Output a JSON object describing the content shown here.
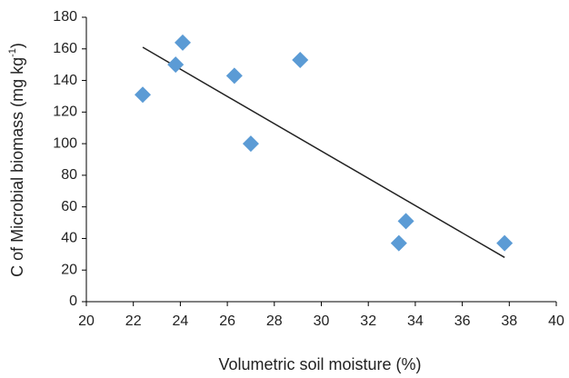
{
  "chart_data": {
    "type": "scatter",
    "x_label": "Volumetric soil moisture (%)",
    "y_label": [
      "C of Microbial biomass (mg kg",
      "-1",
      ")"
    ],
    "x": [
      22.4,
      23.8,
      24.1,
      26.3,
      27.0,
      29.1,
      33.3,
      33.6,
      37.8
    ],
    "values": [
      131,
      150,
      164,
      143,
      100,
      153,
      37,
      51,
      37
    ],
    "color": "#5b9bd5",
    "trendline": {
      "x": [
        22.4,
        37.8
      ],
      "values": [
        161,
        28
      ],
      "color": "#222222"
    },
    "xlim": [
      20,
      40
    ],
    "xticks": [
      20,
      22,
      24,
      26,
      28,
      30,
      32,
      34,
      36,
      38,
      40
    ],
    "ylim": [
      0,
      180
    ],
    "yticks": [
      0,
      20,
      40,
      60,
      80,
      100,
      120,
      140,
      160,
      180
    ],
    "grid": false
  }
}
